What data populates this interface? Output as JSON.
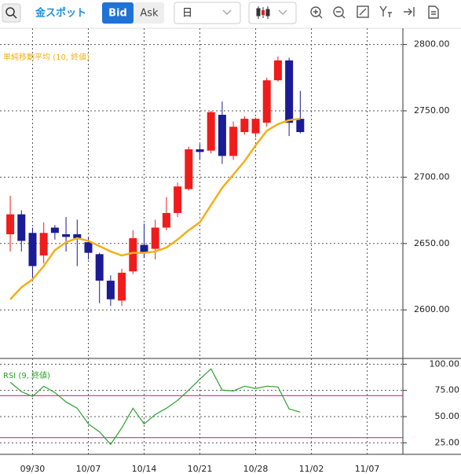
{
  "toolbar": {
    "instrument": "金スポット",
    "bid": "Bid",
    "ask": "Ask",
    "period": "日"
  },
  "chart_data": [
    {
      "type": "candlestick",
      "legend": "単純移動平均 (10, 終値)",
      "open": [
        2657,
        2672,
        2658,
        2641,
        2662,
        2657,
        2657,
        2651,
        2642,
        2622,
        2607,
        2629,
        2649,
        2646,
        2662,
        2673,
        2691,
        2721,
        2720,
        2747,
        2716,
        2734,
        2733,
        2741,
        2773,
        2788,
        2744
      ],
      "high": [
        2686,
        2675,
        2662,
        2666,
        2664,
        2670,
        2668,
        2655,
        2643,
        2626,
        2631,
        2660,
        2665,
        2668,
        2685,
        2696,
        2723,
        2725,
        2750,
        2757,
        2742,
        2746,
        2745,
        2775,
        2791,
        2790,
        2765
      ],
      "low": [
        2644,
        2644,
        2622,
        2635,
        2653,
        2644,
        2633,
        2638,
        2605,
        2603,
        2603,
        2627,
        2639,
        2638,
        2660,
        2670,
        2690,
        2713,
        2718,
        2710,
        2713,
        2732,
        2730,
        2738,
        2772,
        2731,
        2733
      ],
      "close": [
        2672,
        2652,
        2633,
        2658,
        2658,
        2655,
        2654,
        2643,
        2622,
        2608,
        2628,
        2654,
        2643,
        2662,
        2673,
        2693,
        2721,
        2719,
        2749,
        2716,
        2738,
        2744,
        2744,
        2773,
        2788,
        2741,
        2734
      ],
      "up_color": "#f01c1c",
      "down_color": "#1b1b96",
      "overlays": [
        {
          "name": "単純移動平均 (10, 終値)",
          "color": "#f2b019",
          "values": [
            2608,
            2617,
            2623,
            2633,
            2645,
            2651,
            2654,
            2652,
            2648,
            2644,
            2641,
            2643,
            2643,
            2644,
            2647,
            2653,
            2660,
            2666,
            2679,
            2692,
            2702,
            2712,
            2724,
            2735,
            2740,
            2743,
            2744
          ]
        }
      ],
      "ylim": [
        2564,
        2811
      ],
      "yticks": [
        {
          "value": 2600,
          "label": "2600.00"
        },
        {
          "value": 2650,
          "label": "2650.00"
        },
        {
          "value": 2700,
          "label": "2700.00"
        },
        {
          "value": 2750,
          "label": "2750.00"
        },
        {
          "value": 2800,
          "label": "2800.00"
        }
      ],
      "xlim": [
        -0.92,
        35.2
      ],
      "xticks": [
        {
          "value": 2,
          "label": "09/30"
        },
        {
          "value": 7,
          "label": "10/07"
        },
        {
          "value": 12,
          "label": "10/14"
        },
        {
          "value": 17,
          "label": "10/21"
        },
        {
          "value": 22,
          "label": "10/28"
        },
        {
          "value": 27,
          "label": "11/02"
        },
        {
          "value": 32,
          "label": "11/07"
        }
      ],
      "grid": true
    },
    {
      "type": "line",
      "series": [
        {
          "name": "RSI (9, 終値)",
          "color": "#2ea12e",
          "values": [
            82.8,
            73.8,
            69.3,
            79,
            73,
            64,
            58,
            43,
            35.5,
            23.5,
            39.3,
            58,
            43,
            52,
            58,
            65.5,
            75.3,
            85.8,
            95.5,
            75.3,
            74.5,
            79,
            76.8,
            79,
            78.3,
            57.3,
            54.3
          ]
        }
      ],
      "hlines": [
        70,
        30
      ],
      "hline_color": "#d6317f",
      "ylim": [
        14,
        104
      ],
      "yticks": [
        {
          "value": 25,
          "label": "25.00"
        },
        {
          "value": 50,
          "label": "50.00"
        },
        {
          "value": 75,
          "label": "75.00"
        },
        {
          "value": 100,
          "label": "100.00"
        }
      ],
      "xlim": [
        -0.92,
        35.2
      ],
      "grid": true
    }
  ]
}
